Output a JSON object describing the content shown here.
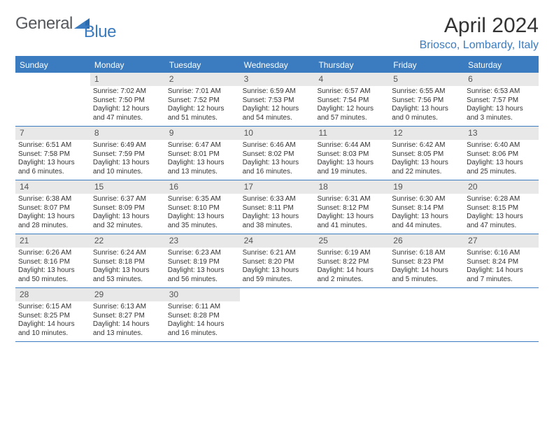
{
  "brand": {
    "part1": "General",
    "part2": "Blue"
  },
  "title": "April 2024",
  "location": "Briosco, Lombardy, Italy",
  "colors": {
    "accent": "#3b7bbf",
    "header_bg": "#3b7bbf",
    "daynum_bg": "#e8e8e8",
    "text": "#333333",
    "bg": "#ffffff"
  },
  "weekdays": [
    "Sunday",
    "Monday",
    "Tuesday",
    "Wednesday",
    "Thursday",
    "Friday",
    "Saturday"
  ],
  "weeks": [
    [
      null,
      {
        "n": "1",
        "sr": "Sunrise: 7:02 AM",
        "ss": "Sunset: 7:50 PM",
        "dl": "Daylight: 12 hours and 47 minutes."
      },
      {
        "n": "2",
        "sr": "Sunrise: 7:01 AM",
        "ss": "Sunset: 7:52 PM",
        "dl": "Daylight: 12 hours and 51 minutes."
      },
      {
        "n": "3",
        "sr": "Sunrise: 6:59 AM",
        "ss": "Sunset: 7:53 PM",
        "dl": "Daylight: 12 hours and 54 minutes."
      },
      {
        "n": "4",
        "sr": "Sunrise: 6:57 AM",
        "ss": "Sunset: 7:54 PM",
        "dl": "Daylight: 12 hours and 57 minutes."
      },
      {
        "n": "5",
        "sr": "Sunrise: 6:55 AM",
        "ss": "Sunset: 7:56 PM",
        "dl": "Daylight: 13 hours and 0 minutes."
      },
      {
        "n": "6",
        "sr": "Sunrise: 6:53 AM",
        "ss": "Sunset: 7:57 PM",
        "dl": "Daylight: 13 hours and 3 minutes."
      }
    ],
    [
      {
        "n": "7",
        "sr": "Sunrise: 6:51 AM",
        "ss": "Sunset: 7:58 PM",
        "dl": "Daylight: 13 hours and 6 minutes."
      },
      {
        "n": "8",
        "sr": "Sunrise: 6:49 AM",
        "ss": "Sunset: 7:59 PM",
        "dl": "Daylight: 13 hours and 10 minutes."
      },
      {
        "n": "9",
        "sr": "Sunrise: 6:47 AM",
        "ss": "Sunset: 8:01 PM",
        "dl": "Daylight: 13 hours and 13 minutes."
      },
      {
        "n": "10",
        "sr": "Sunrise: 6:46 AM",
        "ss": "Sunset: 8:02 PM",
        "dl": "Daylight: 13 hours and 16 minutes."
      },
      {
        "n": "11",
        "sr": "Sunrise: 6:44 AM",
        "ss": "Sunset: 8:03 PM",
        "dl": "Daylight: 13 hours and 19 minutes."
      },
      {
        "n": "12",
        "sr": "Sunrise: 6:42 AM",
        "ss": "Sunset: 8:05 PM",
        "dl": "Daylight: 13 hours and 22 minutes."
      },
      {
        "n": "13",
        "sr": "Sunrise: 6:40 AM",
        "ss": "Sunset: 8:06 PM",
        "dl": "Daylight: 13 hours and 25 minutes."
      }
    ],
    [
      {
        "n": "14",
        "sr": "Sunrise: 6:38 AM",
        "ss": "Sunset: 8:07 PM",
        "dl": "Daylight: 13 hours and 28 minutes."
      },
      {
        "n": "15",
        "sr": "Sunrise: 6:37 AM",
        "ss": "Sunset: 8:09 PM",
        "dl": "Daylight: 13 hours and 32 minutes."
      },
      {
        "n": "16",
        "sr": "Sunrise: 6:35 AM",
        "ss": "Sunset: 8:10 PM",
        "dl": "Daylight: 13 hours and 35 minutes."
      },
      {
        "n": "17",
        "sr": "Sunrise: 6:33 AM",
        "ss": "Sunset: 8:11 PM",
        "dl": "Daylight: 13 hours and 38 minutes."
      },
      {
        "n": "18",
        "sr": "Sunrise: 6:31 AM",
        "ss": "Sunset: 8:12 PM",
        "dl": "Daylight: 13 hours and 41 minutes."
      },
      {
        "n": "19",
        "sr": "Sunrise: 6:30 AM",
        "ss": "Sunset: 8:14 PM",
        "dl": "Daylight: 13 hours and 44 minutes."
      },
      {
        "n": "20",
        "sr": "Sunrise: 6:28 AM",
        "ss": "Sunset: 8:15 PM",
        "dl": "Daylight: 13 hours and 47 minutes."
      }
    ],
    [
      {
        "n": "21",
        "sr": "Sunrise: 6:26 AM",
        "ss": "Sunset: 8:16 PM",
        "dl": "Daylight: 13 hours and 50 minutes."
      },
      {
        "n": "22",
        "sr": "Sunrise: 6:24 AM",
        "ss": "Sunset: 8:18 PM",
        "dl": "Daylight: 13 hours and 53 minutes."
      },
      {
        "n": "23",
        "sr": "Sunrise: 6:23 AM",
        "ss": "Sunset: 8:19 PM",
        "dl": "Daylight: 13 hours and 56 minutes."
      },
      {
        "n": "24",
        "sr": "Sunrise: 6:21 AM",
        "ss": "Sunset: 8:20 PM",
        "dl": "Daylight: 13 hours and 59 minutes."
      },
      {
        "n": "25",
        "sr": "Sunrise: 6:19 AM",
        "ss": "Sunset: 8:22 PM",
        "dl": "Daylight: 14 hours and 2 minutes."
      },
      {
        "n": "26",
        "sr": "Sunrise: 6:18 AM",
        "ss": "Sunset: 8:23 PM",
        "dl": "Daylight: 14 hours and 5 minutes."
      },
      {
        "n": "27",
        "sr": "Sunrise: 6:16 AM",
        "ss": "Sunset: 8:24 PM",
        "dl": "Daylight: 14 hours and 7 minutes."
      }
    ],
    [
      {
        "n": "28",
        "sr": "Sunrise: 6:15 AM",
        "ss": "Sunset: 8:25 PM",
        "dl": "Daylight: 14 hours and 10 minutes."
      },
      {
        "n": "29",
        "sr": "Sunrise: 6:13 AM",
        "ss": "Sunset: 8:27 PM",
        "dl": "Daylight: 14 hours and 13 minutes."
      },
      {
        "n": "30",
        "sr": "Sunrise: 6:11 AM",
        "ss": "Sunset: 8:28 PM",
        "dl": "Daylight: 14 hours and 16 minutes."
      },
      null,
      null,
      null,
      null
    ]
  ]
}
